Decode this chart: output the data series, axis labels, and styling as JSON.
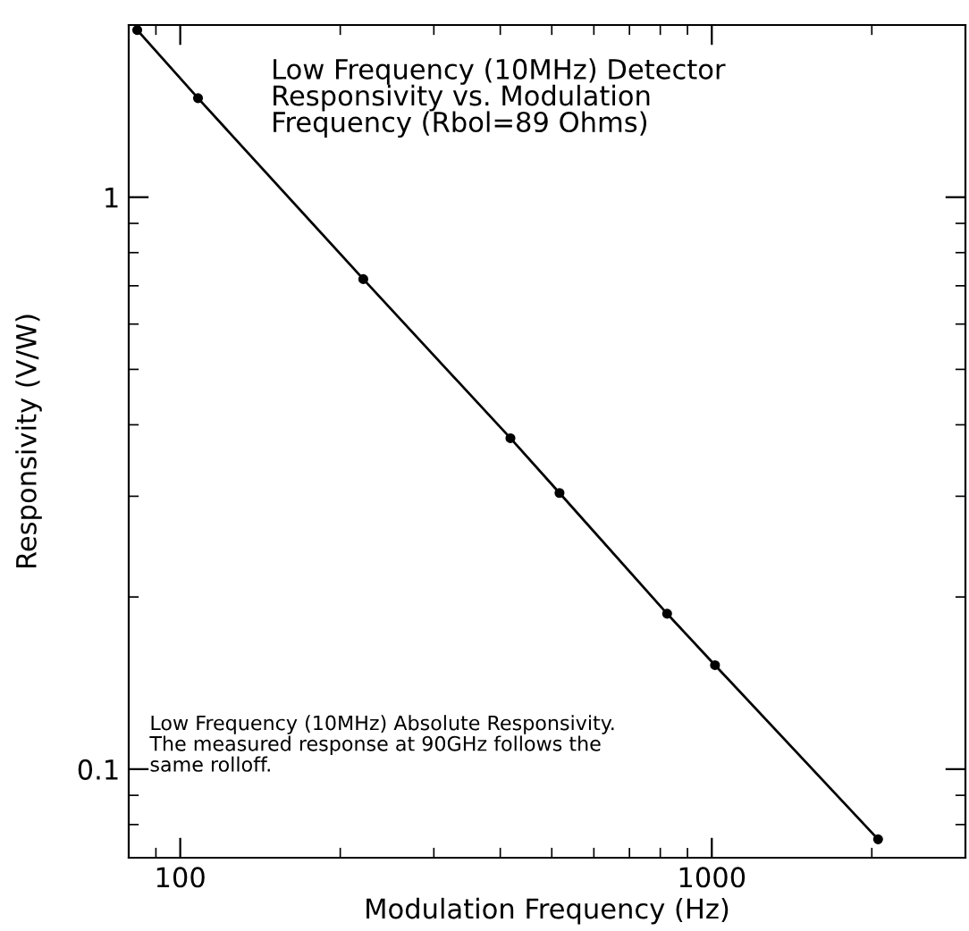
{
  "chart_data": {
    "type": "line",
    "title": "Low Frequency (10MHz) Detector\nResponsivity vs. Modulation\nFrequency (Rbol=89 Ohms)",
    "xlabel": "Modulation Frequency (Hz)",
    "ylabel": "Responsivity (V/W)",
    "annotations": [
      "Low Frequency (10MHz) Absolute Responsivity.\nThe measured response at 90GHz follows the\nsame rolloff."
    ],
    "x": [
      83,
      108,
      221,
      418,
      517,
      824,
      1014,
      2055
    ],
    "series": [
      {
        "color": "#000000",
        "values": [
          1.96,
          1.49,
          0.719,
          0.379,
          0.304,
          0.187,
          0.152,
          0.0754
        ]
      }
    ],
    "log": "xy",
    "xlim": [
      80,
      3000
    ],
    "ylim": [
      0.07,
      2
    ],
    "xticks": [
      100,
      1000
    ],
    "yticks": [
      0.1,
      1
    ],
    "marker": "circle",
    "line_style": "solid",
    "grid": false,
    "legend": false
  }
}
